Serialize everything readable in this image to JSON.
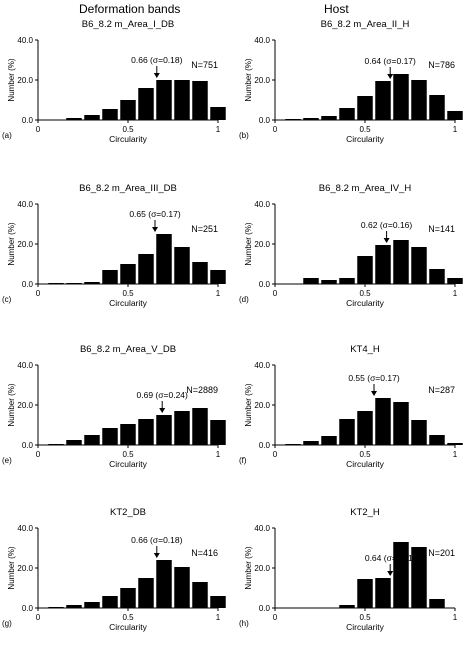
{
  "headers": {
    "left": "Deformation bands",
    "right": "Host"
  },
  "chart_data": [
    {
      "type": "bar",
      "title": "B6_8.2 m_Area_I_DB",
      "panel_label": "(a)",
      "xlabel": "Circularity",
      "ylabel": "Number (%)",
      "xlim": [
        0,
        1
      ],
      "ylim": [
        0,
        40
      ],
      "xticks": [
        "0",
        "0.5",
        "1"
      ],
      "yticks": [
        "0.0",
        "20.0",
        "40.0"
      ],
      "bin_width": 0.1,
      "bins": [
        0.2,
        0.3,
        0.4,
        0.5,
        0.6,
        0.7,
        0.8,
        0.9,
        1.0
      ],
      "values": [
        1,
        2.5,
        5.5,
        10,
        16,
        20,
        20,
        19.5,
        6.5
      ],
      "annotation": {
        "text": "0.66 (σ=0.18)",
        "x": 0.66
      },
      "n_label": "N=751"
    },
    {
      "type": "bar",
      "title": "B6_8.2 m_Area_II_H",
      "panel_label": "(b)",
      "xlabel": "Circularity",
      "ylabel": "Number (%)",
      "xlim": [
        0,
        1
      ],
      "ylim": [
        0,
        40
      ],
      "xticks": [
        "0",
        "0.5",
        "1"
      ],
      "yticks": [
        "0.0",
        "20.0",
        "40.0"
      ],
      "bin_width": 0.1,
      "bins": [
        0.1,
        0.2,
        0.3,
        0.4,
        0.5,
        0.6,
        0.7,
        0.8,
        0.9,
        1.0
      ],
      "values": [
        0.5,
        1,
        2,
        6,
        12,
        19.5,
        23,
        20,
        12.5,
        4.5
      ],
      "annotation": {
        "text": "0.64 (σ=0.17)",
        "x": 0.64
      },
      "n_label": "N=786"
    },
    {
      "type": "bar",
      "title": "B6_8.2 m_Area_III_DB",
      "panel_label": "(c)",
      "xlabel": "Circularity",
      "ylabel": "Number (%)",
      "xlim": [
        0,
        1
      ],
      "ylim": [
        0,
        40
      ],
      "xticks": [
        "0",
        "0.5",
        "1"
      ],
      "yticks": [
        "0.0",
        "20.0",
        "40.0"
      ],
      "bin_width": 0.1,
      "bins": [
        0.1,
        0.2,
        0.3,
        0.4,
        0.5,
        0.6,
        0.7,
        0.8,
        0.9,
        1.0
      ],
      "values": [
        0.5,
        0.5,
        1,
        7,
        10,
        15,
        25,
        18.5,
        11,
        7
      ],
      "annotation": {
        "text": "0.65 (σ=0.17)",
        "x": 0.65
      },
      "n_label": "N=251"
    },
    {
      "type": "bar",
      "title": "B6_8.2 m_Area_IV_H",
      "panel_label": "(d)",
      "xlabel": "Circularity",
      "ylabel": "Number (%)",
      "xlim": [
        0,
        1
      ],
      "ylim": [
        0,
        40
      ],
      "xticks": [
        "0",
        "0.5",
        "1"
      ],
      "yticks": [
        "0.0",
        "20.0",
        "40.0"
      ],
      "bin_width": 0.1,
      "bins": [
        0.2,
        0.3,
        0.4,
        0.5,
        0.6,
        0.7,
        0.8,
        0.9,
        1.0
      ],
      "values": [
        3,
        2,
        3,
        14,
        19.5,
        22,
        18.5,
        7.5,
        3
      ],
      "annotation": {
        "text": "0.62 (σ=0.16)",
        "x": 0.62
      },
      "n_label": "N=141"
    },
    {
      "type": "bar",
      "title": "B6_8.2 m_Area_V_DB",
      "panel_label": "(e)",
      "xlabel": "Circularity",
      "ylabel": "Number (%)",
      "xlim": [
        0,
        1
      ],
      "ylim": [
        0,
        40
      ],
      "xticks": [
        "0",
        "0.5",
        "1"
      ],
      "yticks": [
        "0.0",
        "20.0",
        "40.0"
      ],
      "bin_width": 0.1,
      "bins": [
        0.1,
        0.2,
        0.3,
        0.4,
        0.5,
        0.6,
        0.7,
        0.8,
        0.9,
        1.0
      ],
      "values": [
        0.5,
        2.5,
        5,
        8.5,
        10.5,
        13,
        15,
        17,
        18.5,
        12.5
      ],
      "annotation": {
        "text": "0.69 (σ=0.24)",
        "x": 0.69
      },
      "n_label": "N=2889"
    },
    {
      "type": "bar",
      "title": "KT4_H",
      "panel_label": "(f)",
      "xlabel": "Circularity",
      "ylabel": "Number (%)",
      "xlim": [
        0,
        1
      ],
      "ylim": [
        0,
        40
      ],
      "xticks": [
        "0",
        "0.5",
        "1"
      ],
      "yticks": [
        "0.0",
        "20.0",
        "40.0"
      ],
      "bin_width": 0.1,
      "bins": [
        0.1,
        0.2,
        0.3,
        0.4,
        0.5,
        0.6,
        0.7,
        0.8,
        0.9,
        1.0
      ],
      "values": [
        0.5,
        2,
        4.5,
        13,
        17,
        23.5,
        21.5,
        12.5,
        5,
        1
      ],
      "annotation": {
        "text": "0.55 (σ=0.17)",
        "x": 0.55
      },
      "n_label": "N=287"
    },
    {
      "type": "bar",
      "title": "KT2_DB",
      "panel_label": "(g)",
      "xlabel": "Circularity",
      "ylabel": "Number (%)",
      "xlim": [
        0,
        1
      ],
      "ylim": [
        0,
        40
      ],
      "xticks": [
        "0",
        "0.5",
        "1"
      ],
      "yticks": [
        "0.0",
        "20.0",
        "40.0"
      ],
      "bin_width": 0.1,
      "bins": [
        0.1,
        0.2,
        0.3,
        0.4,
        0.5,
        0.6,
        0.7,
        0.8,
        0.9,
        1.0
      ],
      "values": [
        0.5,
        1.5,
        3,
        6,
        10,
        15,
        24,
        20.5,
        13,
        6
      ],
      "annotation": {
        "text": "0.66 (σ=0.18)",
        "x": 0.66
      },
      "n_label": "N=416"
    },
    {
      "type": "bar",
      "title": "KT2_H",
      "panel_label": "(h)",
      "xlabel": "Circularity",
      "ylabel": "Number (%)",
      "xlim": [
        0,
        1
      ],
      "ylim": [
        0,
        40
      ],
      "xticks": [
        "0",
        "0.5",
        "1"
      ],
      "yticks": [
        "0.0",
        "20.0",
        "40.0"
      ],
      "bin_width": 0.1,
      "bins": [
        0.4,
        0.5,
        0.6,
        0.7,
        0.8,
        0.9
      ],
      "values": [
        1.5,
        14.5,
        15,
        33,
        30.5,
        4.5
      ],
      "annotation": {
        "text": "0.64 (σ=0.11)",
        "x": 0.64
      },
      "n_label": "N=201"
    }
  ]
}
